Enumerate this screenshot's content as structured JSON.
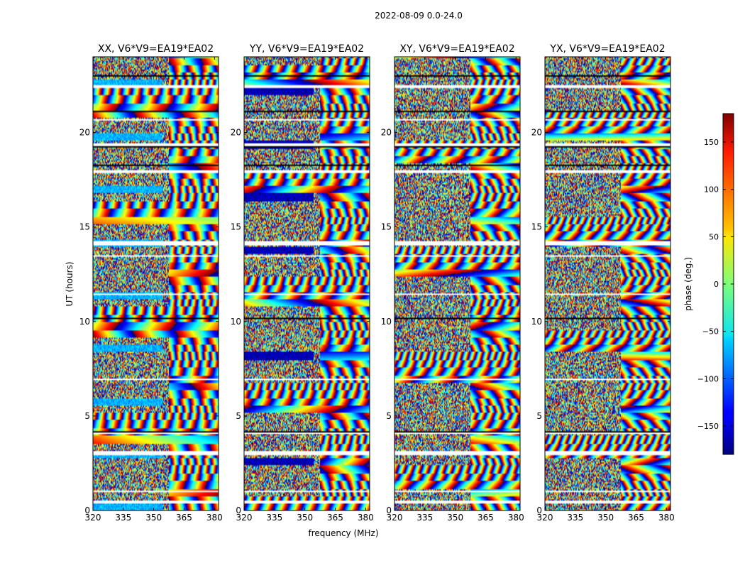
{
  "chart_data": {
    "type": "heatmap",
    "title": "2022-08-09 0.0-24.0",
    "xlabel": "frequency (MHz)",
    "ylabel": "UT (hours)",
    "xlim": [
      320,
      382
    ],
    "ylim": [
      0,
      24
    ],
    "x_ticks": [
      "320",
      "335",
      "350",
      "365",
      "380"
    ],
    "y_ticks": [
      "0",
      "5",
      "10",
      "15",
      "20"
    ],
    "panels": [
      {
        "title": "XX, V6*V9=EA19*EA02"
      },
      {
        "title": "YY, V6*V9=EA19*EA02"
      },
      {
        "title": "XY, V6*V9=EA19*EA02"
      },
      {
        "title": "YX, V6*V9=EA19*EA02"
      }
    ],
    "colorbar": {
      "label": "phase (deg.)",
      "range": [
        -180,
        180
      ],
      "ticks": [
        "−150",
        "−100",
        "−50",
        "0",
        "50",
        "100",
        "150"
      ],
      "colormap": "jet"
    },
    "values": "wrapped visibility phase, noisy with fringe patterns; white rows are flagged time ranges"
  }
}
